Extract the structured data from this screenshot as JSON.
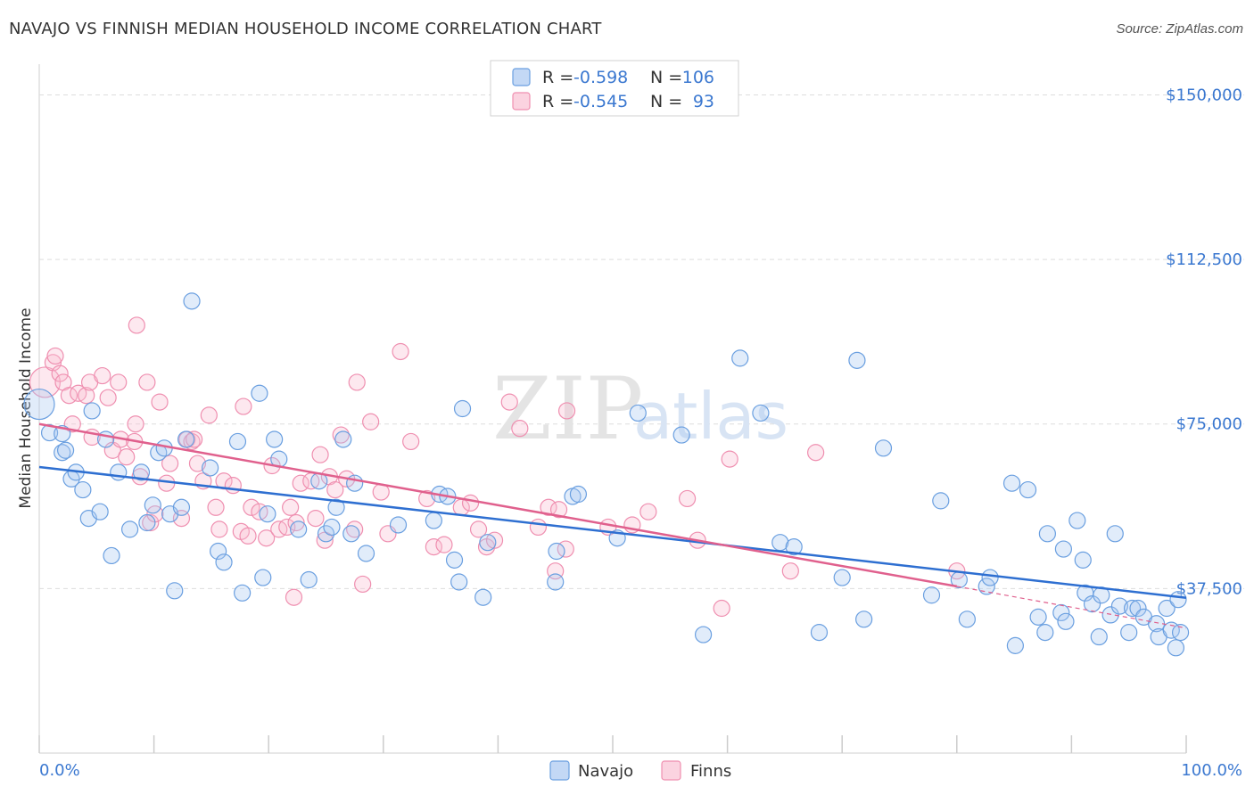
{
  "title": "NAVAJO VS FINNISH MEDIAN HOUSEHOLD INCOME CORRELATION CHART",
  "source": "Source: ZipAtlas.com",
  "watermark": {
    "part1": "ZIP",
    "part2": "atlas"
  },
  "colors": {
    "navajo": "#6a9fe0",
    "finns": "#ef8fb0",
    "navajo_line": "#2e6fd1",
    "finns_line": "#e0608d",
    "tick": "#3b78d0"
  },
  "legend": {
    "rows": [
      {
        "r_label": "R =",
        "r_value": "-0.598",
        "n_label": "N =",
        "n_value": "106"
      },
      {
        "r_label": "R =",
        "r_value": "-0.545",
        "n_label": "N =",
        "n_value": "93"
      }
    ]
  },
  "bottom_legend": {
    "navajo": "Navajo",
    "finns": "Finns"
  },
  "chart_data": {
    "type": "scatter",
    "title": "NAVAJO VS FINNISH MEDIAN HOUSEHOLD INCOME CORRELATION CHART",
    "xlabel": "",
    "ylabel": "Median Household Income",
    "xlim": [
      0,
      100
    ],
    "ylim": [
      0,
      157000
    ],
    "x_tick_labels": [
      "0.0%",
      "100.0%"
    ],
    "y_ticks": [
      37500,
      75000,
      112500,
      150000
    ],
    "y_tick_labels": [
      "$37,500",
      "$75,000",
      "$112,500",
      "$150,000"
    ],
    "grid": true,
    "legend_position": "top-center",
    "series": [
      {
        "name": "Navajo",
        "trend": {
          "x0": 0,
          "y0": 65200,
          "x1": 100,
          "y1": 35400
        },
        "points": [
          [
            0,
            79500
          ],
          [
            0.9,
            73000
          ],
          [
            2,
            72800
          ],
          [
            2,
            68500
          ],
          [
            2.3,
            69000
          ],
          [
            2.8,
            62500
          ],
          [
            3.2,
            64000
          ],
          [
            3.8,
            60000
          ],
          [
            4.3,
            53500
          ],
          [
            4.6,
            78000
          ],
          [
            5.3,
            55000
          ],
          [
            5.8,
            71500
          ],
          [
            6.3,
            45000
          ],
          [
            6.9,
            64000
          ],
          [
            7.9,
            51000
          ],
          [
            8.9,
            64000
          ],
          [
            9.4,
            52500
          ],
          [
            9.9,
            56500
          ],
          [
            10.4,
            68500
          ],
          [
            10.9,
            69500
          ],
          [
            11.4,
            54500
          ],
          [
            11.8,
            37000
          ],
          [
            12.4,
            56000
          ],
          [
            12.8,
            71500
          ],
          [
            13.3,
            103000
          ],
          [
            14.9,
            65000
          ],
          [
            15.6,
            46000
          ],
          [
            16.1,
            43500
          ],
          [
            17.3,
            71000
          ],
          [
            17.7,
            36500
          ],
          [
            19.2,
            82000
          ],
          [
            19.5,
            40000
          ],
          [
            19.9,
            54500
          ],
          [
            20.5,
            71500
          ],
          [
            20.9,
            67000
          ],
          [
            22.6,
            51000
          ],
          [
            23.5,
            39500
          ],
          [
            24.4,
            62000
          ],
          [
            25,
            50000
          ],
          [
            25.5,
            51500
          ],
          [
            25.9,
            56000
          ],
          [
            26.5,
            71500
          ],
          [
            27.2,
            50000
          ],
          [
            27.5,
            61500
          ],
          [
            28.5,
            45500
          ],
          [
            31.3,
            52000
          ],
          [
            34.4,
            53000
          ],
          [
            34.9,
            59000
          ],
          [
            35.6,
            58500
          ],
          [
            36.2,
            44000
          ],
          [
            36.6,
            39000
          ],
          [
            36.9,
            78500
          ],
          [
            38.7,
            35500
          ],
          [
            39.1,
            48000
          ],
          [
            45,
            39000
          ],
          [
            45.1,
            46000
          ],
          [
            46.5,
            58500
          ],
          [
            47,
            59000
          ],
          [
            50.4,
            49000
          ],
          [
            52.2,
            77500
          ],
          [
            56,
            72500
          ],
          [
            57.9,
            27000
          ],
          [
            61.1,
            90000
          ],
          [
            62.9,
            77500
          ],
          [
            64.6,
            48000
          ],
          [
            65.8,
            47000
          ],
          [
            68,
            27500
          ],
          [
            70,
            40000
          ],
          [
            71.3,
            89500
          ],
          [
            71.9,
            30500
          ],
          [
            73.6,
            69500
          ],
          [
            77.8,
            36000
          ],
          [
            78.6,
            57500
          ],
          [
            80.2,
            39500
          ],
          [
            80.9,
            30500
          ],
          [
            82.6,
            38000
          ],
          [
            82.9,
            40000
          ],
          [
            84.8,
            61500
          ],
          [
            85.1,
            24500
          ],
          [
            86.2,
            60000
          ],
          [
            87.1,
            31000
          ],
          [
            87.7,
            27500
          ],
          [
            87.9,
            50000
          ],
          [
            89.1,
            32000
          ],
          [
            89.3,
            46500
          ],
          [
            89.5,
            30000
          ],
          [
            90.5,
            53000
          ],
          [
            91,
            44000
          ],
          [
            91.2,
            36500
          ],
          [
            91.8,
            34000
          ],
          [
            92.4,
            26500
          ],
          [
            92.6,
            36000
          ],
          [
            93.4,
            31500
          ],
          [
            93.8,
            50000
          ],
          [
            94.2,
            33500
          ],
          [
            95,
            27500
          ],
          [
            95.3,
            33000
          ],
          [
            95.8,
            33000
          ],
          [
            96.3,
            31000
          ],
          [
            97.4,
            29500
          ],
          [
            97.6,
            26500
          ],
          [
            98.3,
            33000
          ],
          [
            98.7,
            28000
          ],
          [
            99.1,
            24000
          ],
          [
            99.3,
            35000
          ],
          [
            99.5,
            27500
          ]
        ]
      },
      {
        "name": "Finns",
        "trend": {
          "x0": 0,
          "y0": 75000,
          "x1": 80,
          "y1": 38000,
          "dashed_to_x": 100,
          "dashed_to_y": 28500
        },
        "points": [
          [
            0.5,
            84500
          ],
          [
            1.2,
            89000
          ],
          [
            1.4,
            90500
          ],
          [
            1.8,
            86500
          ],
          [
            2.1,
            84500
          ],
          [
            2.6,
            81500
          ],
          [
            2.9,
            75000
          ],
          [
            3.4,
            82000
          ],
          [
            4.1,
            81500
          ],
          [
            4.4,
            84500
          ],
          [
            4.6,
            72000
          ],
          [
            5.5,
            86000
          ],
          [
            6,
            81000
          ],
          [
            6.4,
            69000
          ],
          [
            6.9,
            84500
          ],
          [
            7.1,
            71500
          ],
          [
            7.6,
            67500
          ],
          [
            8.3,
            71000
          ],
          [
            8.4,
            75000
          ],
          [
            8.5,
            97500
          ],
          [
            8.8,
            63000
          ],
          [
            9.4,
            84500
          ],
          [
            9.7,
            52500
          ],
          [
            10.1,
            54500
          ],
          [
            10.5,
            80000
          ],
          [
            11.1,
            61500
          ],
          [
            11.4,
            66000
          ],
          [
            12.4,
            53500
          ],
          [
            12.9,
            71500
          ],
          [
            13.3,
            71000
          ],
          [
            13.5,
            71500
          ],
          [
            13.8,
            66000
          ],
          [
            14.3,
            62000
          ],
          [
            14.8,
            77000
          ],
          [
            15.4,
            56000
          ],
          [
            15.7,
            51000
          ],
          [
            16.1,
            62000
          ],
          [
            16.9,
            61000
          ],
          [
            17.6,
            50500
          ],
          [
            17.8,
            79000
          ],
          [
            18.2,
            49500
          ],
          [
            18.5,
            56000
          ],
          [
            19.2,
            55000
          ],
          [
            19.8,
            49000
          ],
          [
            20.3,
            65500
          ],
          [
            20.9,
            51000
          ],
          [
            21.6,
            51500
          ],
          [
            21.9,
            56000
          ],
          [
            22.2,
            35500
          ],
          [
            22.4,
            52500
          ],
          [
            22.8,
            61500
          ],
          [
            23.7,
            62000
          ],
          [
            24.1,
            53500
          ],
          [
            24.5,
            68000
          ],
          [
            24.9,
            48500
          ],
          [
            25.3,
            63000
          ],
          [
            25.8,
            60000
          ],
          [
            26.3,
            72500
          ],
          [
            26.8,
            62500
          ],
          [
            27.5,
            51000
          ],
          [
            27.7,
            84500
          ],
          [
            28.2,
            38500
          ],
          [
            28.9,
            75500
          ],
          [
            29.8,
            59500
          ],
          [
            30.4,
            50000
          ],
          [
            31.5,
            91500
          ],
          [
            32.4,
            71000
          ],
          [
            33.8,
            58000
          ],
          [
            34.4,
            47000
          ],
          [
            35.3,
            47500
          ],
          [
            36.8,
            56000
          ],
          [
            37.6,
            57000
          ],
          [
            38.3,
            51000
          ],
          [
            39,
            47000
          ],
          [
            39.7,
            48500
          ],
          [
            41,
            80000
          ],
          [
            41.9,
            74000
          ],
          [
            43.5,
            51500
          ],
          [
            44.4,
            56000
          ],
          [
            45,
            41500
          ],
          [
            45.3,
            55500
          ],
          [
            45.9,
            46500
          ],
          [
            46,
            78000
          ],
          [
            49.6,
            51500
          ],
          [
            51.7,
            52000
          ],
          [
            53.1,
            55000
          ],
          [
            56.5,
            58000
          ],
          [
            57.4,
            48500
          ],
          [
            59.5,
            33000
          ],
          [
            60.2,
            67000
          ],
          [
            65.5,
            41500
          ],
          [
            67.7,
            68500
          ],
          [
            80,
            41500
          ]
        ]
      }
    ]
  }
}
